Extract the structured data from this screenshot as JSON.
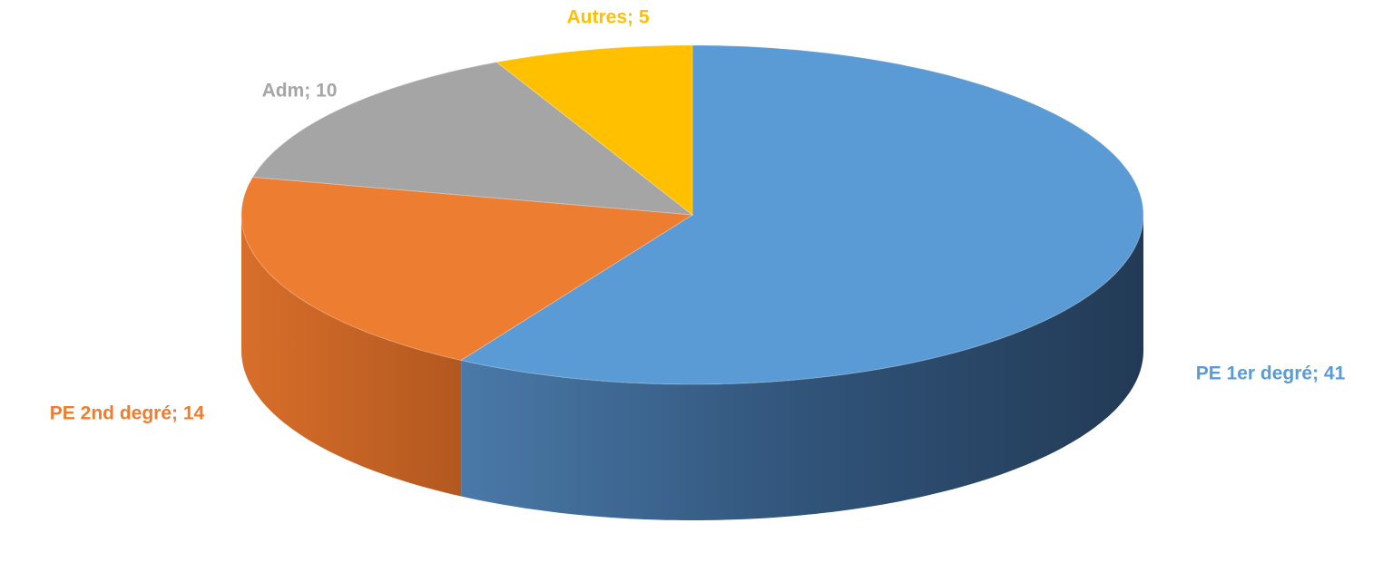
{
  "chart_data": {
    "type": "pie",
    "values": [
      41,
      14,
      10,
      5
    ],
    "value_labels": [
      "PE 1er degré; 41",
      "PE 2nd degré; 14",
      "Adm; 10",
      "Autres; 5"
    ],
    "colors": [
      "#5b9bd5",
      "#ed7d31",
      "#a5a5a5",
      "#ffc000"
    ],
    "label_colors": [
      "#5b9bd5",
      "#ed7d31",
      "#a5a5a5",
      "#ffc000"
    ]
  }
}
